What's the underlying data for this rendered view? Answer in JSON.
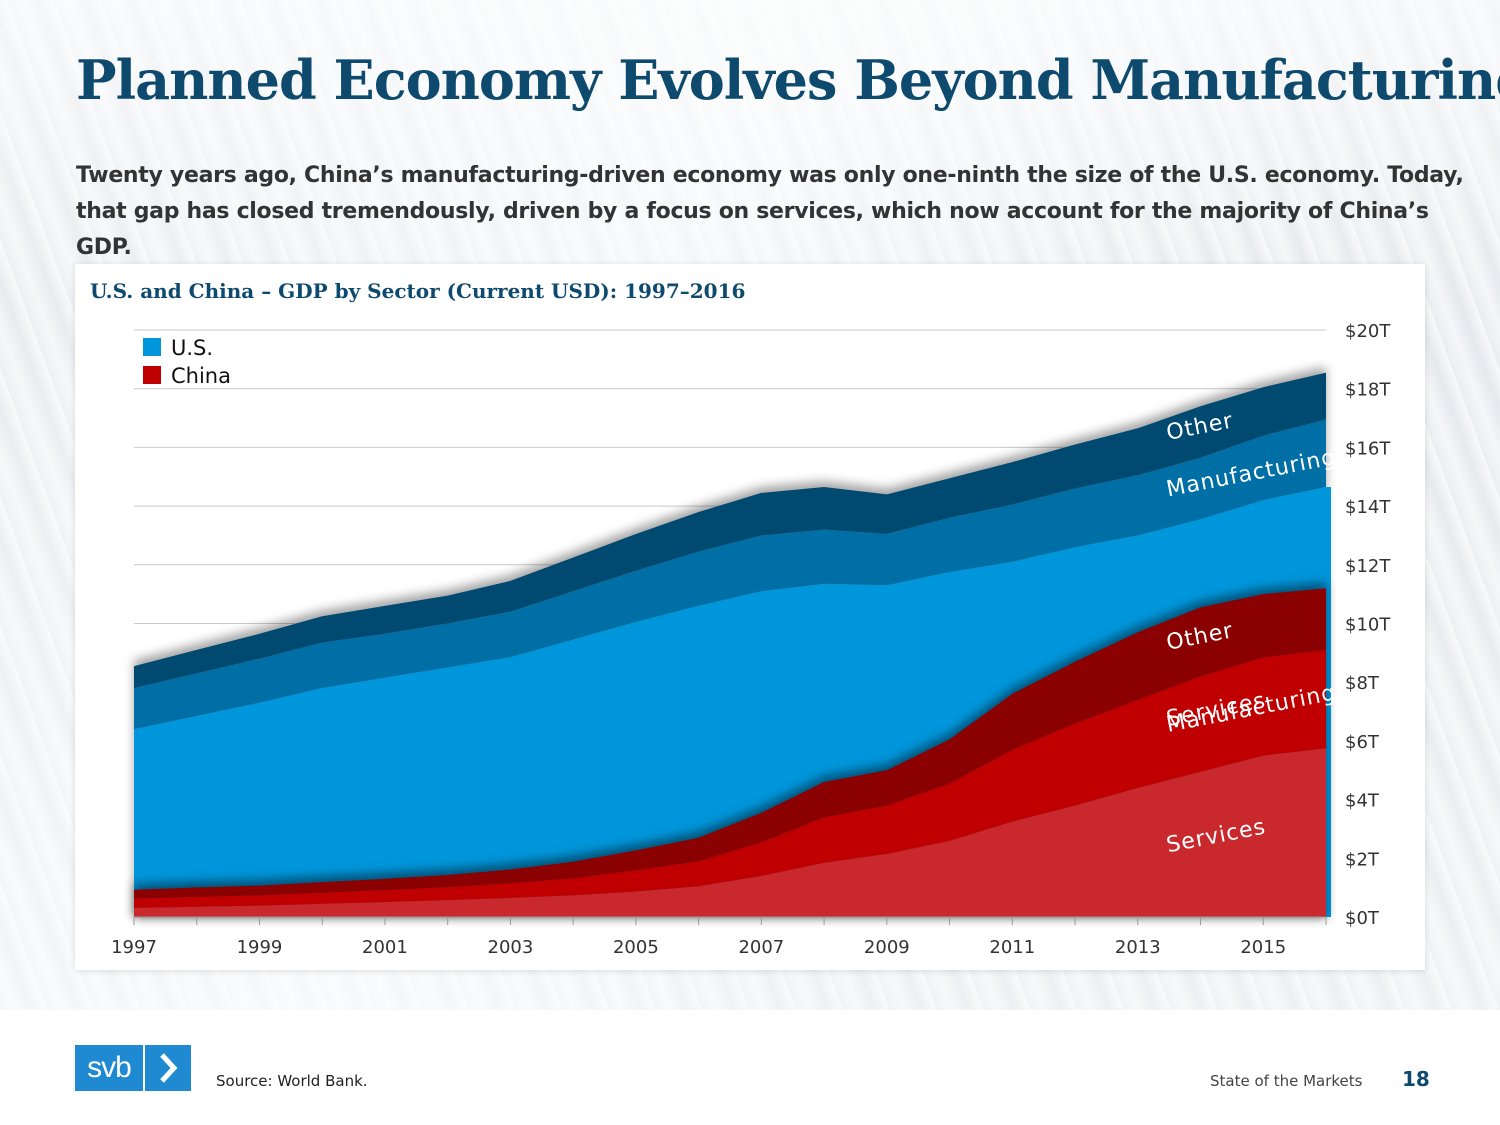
{
  "slide": {
    "title": "Planned Economy Evolves Beyond Manufacturing",
    "subtitle": "Twenty years ago, China’s manufacturing-driven economy was only one-ninth the size of the U.S. economy. Today, that gap has closed tremendously, driven by a focus on services, which now account for the majority of China’s GDP."
  },
  "footer": {
    "logo_text": "svb",
    "source": "Source: World Bank.",
    "section": "State of the Markets",
    "page": "18"
  },
  "colors": {
    "us_services": "#0096db",
    "us_manufacturing": "#006fa6",
    "us_other": "#004a72",
    "china_services": "#c9282d",
    "china_manufacturing": "#c00000",
    "china_other": "#8b0000",
    "title": "#0d4a6e"
  },
  "chart_data": {
    "type": "area",
    "title": "U.S. and China – GDP by Sector (Current USD): 1997–2016",
    "stacked": true,
    "unit": "trillion USD",
    "x": [
      1997,
      1998,
      1999,
      2000,
      2001,
      2002,
      2003,
      2004,
      2005,
      2006,
      2007,
      2008,
      2009,
      2010,
      2011,
      2012,
      2013,
      2014,
      2015,
      2016
    ],
    "x_tick_labels": [
      "1997",
      "1999",
      "2001",
      "2003",
      "2005",
      "2007",
      "2009",
      "2011",
      "2013",
      "2015"
    ],
    "y_tick_labels": [
      "$0T",
      "$2T",
      "$4T",
      "$6T",
      "$8T",
      "$10T",
      "$12T",
      "$14T",
      "$16T",
      "$18T",
      "$20T"
    ],
    "ylim": [
      0,
      20
    ],
    "y_axis_position": "right",
    "legend": {
      "position": "top-left",
      "entries": [
        {
          "label": "U.S.",
          "color": "#0096db"
        },
        {
          "label": "China",
          "color": "#c00000"
        }
      ]
    },
    "groups": [
      {
        "name": "China",
        "series": [
          {
            "name": "Services",
            "values": [
              0.31,
              0.35,
              0.39,
              0.45,
              0.51,
              0.58,
              0.65,
              0.74,
              0.87,
              1.05,
              1.4,
              1.85,
              2.15,
              2.6,
              3.25,
              3.8,
              4.4,
              4.95,
              5.5,
              5.75
            ]
          },
          {
            "name": "Manufacturing",
            "values": [
              0.32,
              0.34,
              0.35,
              0.38,
              0.41,
              0.44,
              0.5,
              0.58,
              0.72,
              0.85,
              1.15,
              1.55,
              1.65,
              1.95,
              2.45,
              2.8,
              3.0,
              3.25,
              3.35,
              3.35
            ]
          },
          {
            "name": "Other",
            "values": [
              0.3,
              0.32,
              0.33,
              0.36,
              0.38,
              0.41,
              0.47,
              0.56,
              0.68,
              0.8,
              1.0,
              1.2,
              1.2,
              1.5,
              1.9,
              2.1,
              2.3,
              2.35,
              2.15,
              2.1
            ]
          }
        ]
      },
      {
        "name": "U.S.",
        "series": [
          {
            "name": "Services",
            "values": [
              6.4,
              6.85,
              7.3,
              7.8,
              8.15,
              8.5,
              8.85,
              9.45,
              10.05,
              10.6,
              11.1,
              11.35,
              11.3,
              11.75,
              12.1,
              12.6,
              13.0,
              13.55,
              14.2,
              14.65
            ]
          },
          {
            "name": "Manufacturing",
            "values": [
              1.4,
              1.45,
              1.5,
              1.55,
              1.5,
              1.5,
              1.55,
              1.65,
              1.75,
              1.85,
              1.9,
              1.85,
              1.75,
              1.85,
              1.95,
              2.0,
              2.05,
              2.1,
              2.2,
              2.3
            ]
          },
          {
            "name": "Other",
            "values": [
              0.75,
              0.8,
              0.85,
              0.9,
              0.95,
              0.95,
              1.05,
              1.15,
              1.25,
              1.35,
              1.45,
              1.45,
              1.35,
              1.35,
              1.45,
              1.5,
              1.6,
              1.75,
              1.65,
              1.6
            ]
          }
        ]
      }
    ]
  }
}
